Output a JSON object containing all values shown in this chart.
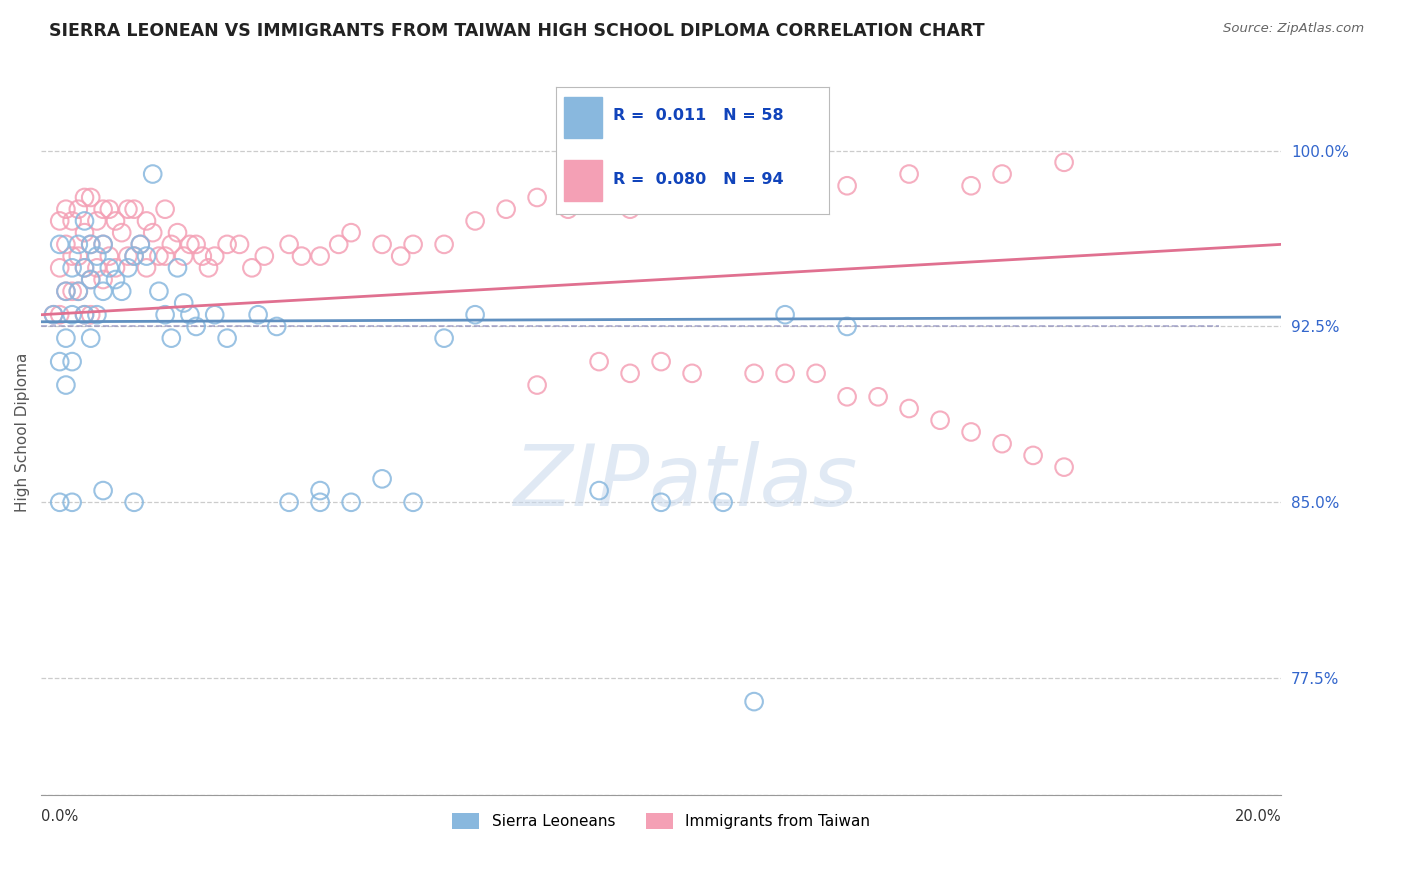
{
  "title": "SIERRA LEONEAN VS IMMIGRANTS FROM TAIWAN HIGH SCHOOL DIPLOMA CORRELATION CHART",
  "source": "Source: ZipAtlas.com",
  "ylabel": "High School Diploma",
  "ytick_labels": [
    "77.5%",
    "85.0%",
    "92.5%",
    "100.0%"
  ],
  "ytick_values": [
    0.775,
    0.85,
    0.925,
    1.0
  ],
  "xmin": 0.0,
  "xmax": 0.2,
  "ymin": 0.725,
  "ymax": 1.035,
  "r1": 0.011,
  "n1": 58,
  "r2": 0.08,
  "n2": 94,
  "color_blue": "#89b8de",
  "color_pink": "#f4a0b5",
  "color_blue_dark": "#6090c0",
  "color_pink_dark": "#e07090",
  "dashed_line_y": 0.925,
  "blue_trend_x": [
    0.0,
    0.2
  ],
  "blue_trend_y": [
    0.927,
    0.929
  ],
  "pink_trend_x": [
    0.0,
    0.2
  ],
  "pink_trend_y": [
    0.93,
    0.96
  ],
  "watermark_text": "ZIPatlas",
  "legend_labels": [
    "Sierra Leoneans",
    "Immigrants from Taiwan"
  ],
  "blue_x": [
    0.002,
    0.003,
    0.003,
    0.004,
    0.004,
    0.004,
    0.005,
    0.005,
    0.005,
    0.006,
    0.006,
    0.007,
    0.007,
    0.007,
    0.008,
    0.008,
    0.008,
    0.009,
    0.009,
    0.01,
    0.01,
    0.011,
    0.012,
    0.013,
    0.014,
    0.015,
    0.016,
    0.017,
    0.018,
    0.019,
    0.02,
    0.021,
    0.022,
    0.023,
    0.024,
    0.025,
    0.028,
    0.03,
    0.035,
    0.038,
    0.04,
    0.045,
    0.05,
    0.055,
    0.06,
    0.065,
    0.07,
    0.12,
    0.13,
    0.003,
    0.005,
    0.01,
    0.015,
    0.045,
    0.09,
    0.1,
    0.11,
    0.115
  ],
  "blue_y": [
    0.93,
    0.96,
    0.91,
    0.94,
    0.92,
    0.9,
    0.95,
    0.93,
    0.91,
    0.96,
    0.94,
    0.97,
    0.95,
    0.93,
    0.96,
    0.945,
    0.92,
    0.955,
    0.93,
    0.96,
    0.94,
    0.95,
    0.945,
    0.94,
    0.95,
    0.955,
    0.96,
    0.955,
    0.99,
    0.94,
    0.93,
    0.92,
    0.95,
    0.935,
    0.93,
    0.925,
    0.93,
    0.92,
    0.93,
    0.925,
    0.85,
    0.855,
    0.85,
    0.86,
    0.85,
    0.92,
    0.93,
    0.93,
    0.925,
    0.85,
    0.85,
    0.855,
    0.85,
    0.85,
    0.855,
    0.85,
    0.85,
    0.765
  ],
  "pink_x": [
    0.002,
    0.003,
    0.003,
    0.003,
    0.004,
    0.004,
    0.004,
    0.005,
    0.005,
    0.005,
    0.006,
    0.006,
    0.006,
    0.007,
    0.007,
    0.007,
    0.007,
    0.008,
    0.008,
    0.008,
    0.008,
    0.009,
    0.009,
    0.01,
    0.01,
    0.01,
    0.011,
    0.011,
    0.012,
    0.012,
    0.013,
    0.014,
    0.014,
    0.015,
    0.015,
    0.016,
    0.017,
    0.017,
    0.018,
    0.019,
    0.02,
    0.02,
    0.021,
    0.022,
    0.023,
    0.024,
    0.025,
    0.026,
    0.027,
    0.028,
    0.03,
    0.032,
    0.034,
    0.036,
    0.04,
    0.042,
    0.045,
    0.048,
    0.05,
    0.055,
    0.058,
    0.06,
    0.065,
    0.07,
    0.075,
    0.08,
    0.085,
    0.09,
    0.095,
    0.1,
    0.105,
    0.11,
    0.12,
    0.13,
    0.14,
    0.15,
    0.155,
    0.165,
    0.08,
    0.09,
    0.095,
    0.1,
    0.105,
    0.115,
    0.12,
    0.125,
    0.13,
    0.135,
    0.14,
    0.145,
    0.15,
    0.155,
    0.16,
    0.165
  ],
  "pink_y": [
    0.93,
    0.97,
    0.95,
    0.93,
    0.975,
    0.96,
    0.94,
    0.97,
    0.955,
    0.94,
    0.975,
    0.955,
    0.94,
    0.98,
    0.965,
    0.95,
    0.93,
    0.98,
    0.96,
    0.945,
    0.93,
    0.97,
    0.95,
    0.975,
    0.96,
    0.945,
    0.975,
    0.955,
    0.97,
    0.95,
    0.965,
    0.975,
    0.955,
    0.975,
    0.955,
    0.96,
    0.97,
    0.95,
    0.965,
    0.955,
    0.975,
    0.955,
    0.96,
    0.965,
    0.955,
    0.96,
    0.96,
    0.955,
    0.95,
    0.955,
    0.96,
    0.96,
    0.95,
    0.955,
    0.96,
    0.955,
    0.955,
    0.96,
    0.965,
    0.96,
    0.955,
    0.96,
    0.96,
    0.97,
    0.975,
    0.98,
    0.975,
    0.985,
    0.975,
    0.98,
    0.985,
    0.99,
    0.98,
    0.985,
    0.99,
    0.985,
    0.99,
    0.995,
    0.9,
    0.91,
    0.905,
    0.91,
    0.905,
    0.905,
    0.905,
    0.905,
    0.895,
    0.895,
    0.89,
    0.885,
    0.88,
    0.875,
    0.87,
    0.865
  ]
}
